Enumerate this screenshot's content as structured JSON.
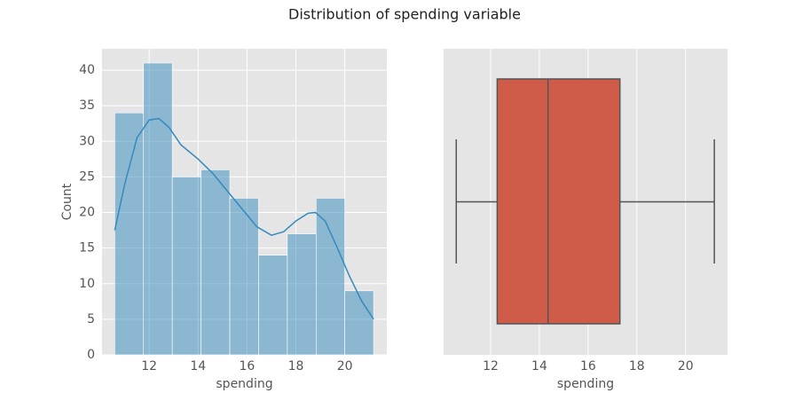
{
  "title": "Distribution of spending variable",
  "chart_data": [
    {
      "type": "histogram",
      "xlabel": "spending",
      "ylabel": "Count",
      "color": "#348ABD",
      "bins": [
        10.59,
        11.767,
        12.943,
        14.12,
        15.297,
        16.473,
        17.65,
        18.827,
        20.003,
        21.18
      ],
      "values": [
        34,
        41,
        25,
        26,
        22,
        14,
        17,
        22,
        9
      ],
      "kde": {
        "x": [
          10.59,
          11.0,
          11.5,
          12.0,
          12.4,
          12.8,
          13.3,
          14.0,
          14.6,
          15.2,
          15.8,
          16.4,
          17.0,
          17.5,
          18.0,
          18.5,
          18.8,
          19.2,
          19.7,
          20.2,
          20.7,
          21.18
        ],
        "y": [
          17.5,
          24,
          30.5,
          33,
          33.2,
          32,
          29.5,
          27.5,
          25.5,
          23,
          20.5,
          18,
          16.8,
          17.3,
          18.8,
          19.9,
          20,
          18.8,
          15,
          11,
          7.5,
          5
        ]
      },
      "xlim": [
        10.07,
        21.72
      ],
      "xticks": [
        12,
        14,
        16,
        18,
        20
      ],
      "ylim": [
        0,
        43
      ],
      "yticks": [
        0,
        5,
        10,
        15,
        20,
        25,
        30,
        35,
        40
      ],
      "grid": true
    },
    {
      "type": "boxplot",
      "xlabel": "spending",
      "color": "#cf5c48",
      "box": {
        "whislo": 10.59,
        "q1": 12.27,
        "med": 14.355,
        "q3": 17.305,
        "whishi": 21.18
      },
      "xlim": [
        10.07,
        21.72
      ],
      "xticks": [
        12,
        14,
        16,
        18,
        20
      ],
      "grid": true
    }
  ]
}
